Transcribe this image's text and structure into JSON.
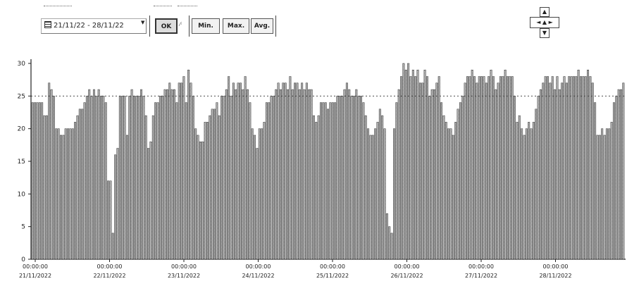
{
  "toolbar": {
    "date_range": "21/11/22 - 28/11/22",
    "buttons": [
      {
        "label": "Min."
      },
      {
        "label": "Max."
      },
      {
        "label": "Avg."
      }
    ],
    "ok_label": "OK"
  },
  "chart_data": {
    "type": "bar",
    "ylim": [
      0,
      30
    ],
    "yticks": [
      0,
      5,
      10,
      15,
      20,
      25,
      30
    ],
    "y_tick_labels": [
      "0",
      "5",
      "10",
      "15",
      "20",
      "25",
      "30"
    ],
    "reference_line": 25,
    "x_tick_labels": [
      {
        "time": "00:00:00",
        "date": "21/11/2022"
      },
      {
        "time": "00:00:00",
        "date": "22/11/2022"
      },
      {
        "time": "00:00:00",
        "date": "23/11/2022"
      },
      {
        "time": "00:00:00",
        "date": "24/11/2022"
      },
      {
        "time": "00:00:00",
        "date": "25/11/2022"
      },
      {
        "time": "00:00:00",
        "date": "26/11/2022"
      },
      {
        "time": "00:00:00",
        "date": "27/11/2022"
      },
      {
        "time": "00:00:00",
        "date": "28/11/2022"
      }
    ],
    "values": [
      24,
      24,
      24,
      24,
      24,
      22,
      22,
      27,
      26,
      25,
      20,
      20,
      19,
      19,
      20,
      20,
      20,
      20,
      21,
      22,
      23,
      23,
      24,
      25,
      26,
      25,
      26,
      25,
      26,
      25,
      25,
      24,
      12,
      12,
      4,
      16,
      17,
      25,
      25,
      25,
      19,
      25,
      26,
      25,
      25,
      25,
      26,
      25,
      22,
      17,
      18,
      22,
      24,
      24,
      25,
      25,
      26,
      26,
      27,
      26,
      26,
      24,
      27,
      27,
      28,
      24,
      29,
      27,
      25,
      20,
      19,
      18,
      18,
      21,
      21,
      22,
      23,
      23,
      24,
      22,
      25,
      25,
      26,
      28,
      25,
      27,
      26,
      27,
      27,
      26,
      28,
      26,
      24,
      20,
      19,
      17,
      20,
      20,
      21,
      24,
      24,
      25,
      25,
      26,
      27,
      26,
      27,
      27,
      26,
      28,
      26,
      27,
      27,
      26,
      27,
      26,
      27,
      26,
      26,
      22,
      21,
      22,
      24,
      24,
      24,
      23,
      24,
      24,
      24,
      25,
      25,
      25,
      26,
      27,
      26,
      25,
      25,
      26,
      25,
      25,
      24,
      22,
      20,
      19,
      19,
      20,
      21,
      23,
      22,
      20,
      7,
      5,
      4,
      20,
      24,
      26,
      28,
      30,
      29,
      30,
      28,
      29,
      28,
      29,
      27,
      27,
      29,
      28,
      25,
      26,
      26,
      27,
      28,
      24,
      22,
      21,
      20,
      20,
      19,
      21,
      23,
      24,
      25,
      27,
      28,
      28,
      29,
      28,
      27,
      28,
      28,
      28,
      27,
      28,
      29,
      28,
      26,
      27,
      28,
      28,
      29,
      28,
      28,
      28,
      25,
      21,
      22,
      20,
      19,
      20,
      21,
      20,
      21,
      23,
      25,
      26,
      27,
      28,
      28,
      27,
      28,
      26,
      28,
      26,
      27,
      28,
      27,
      28,
      28,
      28,
      28,
      29,
      28,
      28,
      28,
      29,
      28,
      27,
      24,
      19,
      19,
      20,
      19,
      20,
      20,
      21,
      24,
      25,
      26,
      26,
      27
    ]
  }
}
